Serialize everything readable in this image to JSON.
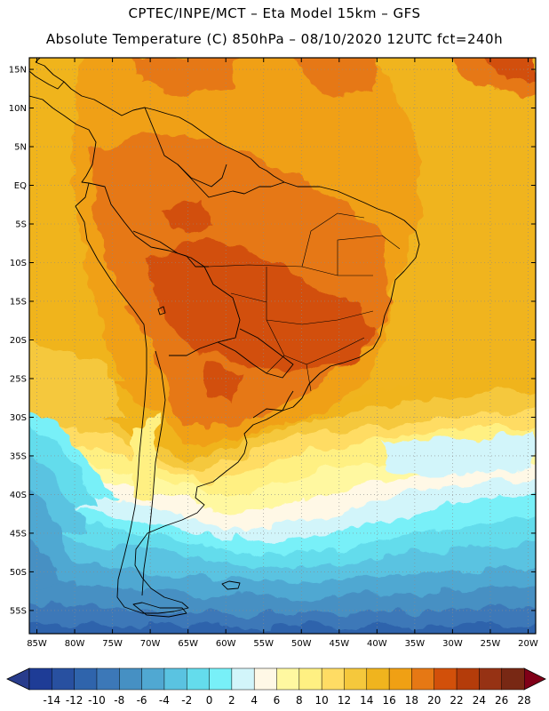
{
  "title": {
    "line1": "CPTEC/INPE/MCT –  Eta Model 15km – GFS",
    "line2": "Absolute Temperature (C) 850hPa – 08/10/2020 12UTC fct=240h"
  },
  "map": {
    "lon_range": [
      -86,
      -19
    ],
    "lat_range": [
      -58,
      16.5
    ],
    "lat_ticks": [
      {
        "value": 15,
        "label": "15N"
      },
      {
        "value": 10,
        "label": "10N"
      },
      {
        "value": 5,
        "label": "5N"
      },
      {
        "value": 0,
        "label": "EQ"
      },
      {
        "value": -5,
        "label": "5S"
      },
      {
        "value": -10,
        "label": "10S"
      },
      {
        "value": -15,
        "label": "15S"
      },
      {
        "value": -20,
        "label": "20S"
      },
      {
        "value": -25,
        "label": "25S"
      },
      {
        "value": -30,
        "label": "30S"
      },
      {
        "value": -35,
        "label": "35S"
      },
      {
        "value": -40,
        "label": "40S"
      },
      {
        "value": -45,
        "label": "45S"
      },
      {
        "value": -50,
        "label": "50S"
      },
      {
        "value": -55,
        "label": "55S"
      }
    ],
    "lon_ticks": [
      {
        "value": -85,
        "label": "85W"
      },
      {
        "value": -80,
        "label": "80W"
      },
      {
        "value": -75,
        "label": "75W"
      },
      {
        "value": -70,
        "label": "70W"
      },
      {
        "value": -65,
        "label": "65W"
      },
      {
        "value": -60,
        "label": "60W"
      },
      {
        "value": -55,
        "label": "55W"
      },
      {
        "value": -50,
        "label": "50W"
      },
      {
        "value": -45,
        "label": "45W"
      },
      {
        "value": -40,
        "label": "40W"
      },
      {
        "value": -35,
        "label": "35W"
      },
      {
        "value": -30,
        "label": "30W"
      },
      {
        "value": -25,
        "label": "25W"
      },
      {
        "value": -20,
        "label": "20W"
      }
    ]
  },
  "colorbar": {
    "labels": [
      "-14",
      "-12",
      "-10",
      "-8",
      "-6",
      "-4",
      "-2",
      "0",
      "2",
      "4",
      "6",
      "8",
      "10",
      "12",
      "14",
      "16",
      "18",
      "20",
      "22",
      "24",
      "26",
      "28"
    ],
    "under_color": "#283c8c",
    "over_color": "#800018",
    "colors": [
      "#1e3c96",
      "#2850a0",
      "#2f64ac",
      "#3c78b8",
      "#4690c3",
      "#50a8d2",
      "#5ac3e1",
      "#64dcec",
      "#78f0f8",
      "#d2f5fa",
      "#fff8e6",
      "#fff8a0",
      "#fff082",
      "#ffdc64",
      "#f5c83c",
      "#f0b41e",
      "#f0a014",
      "#e67814",
      "#d2500a",
      "#b43c0a",
      "#963214",
      "#782814"
    ]
  }
}
